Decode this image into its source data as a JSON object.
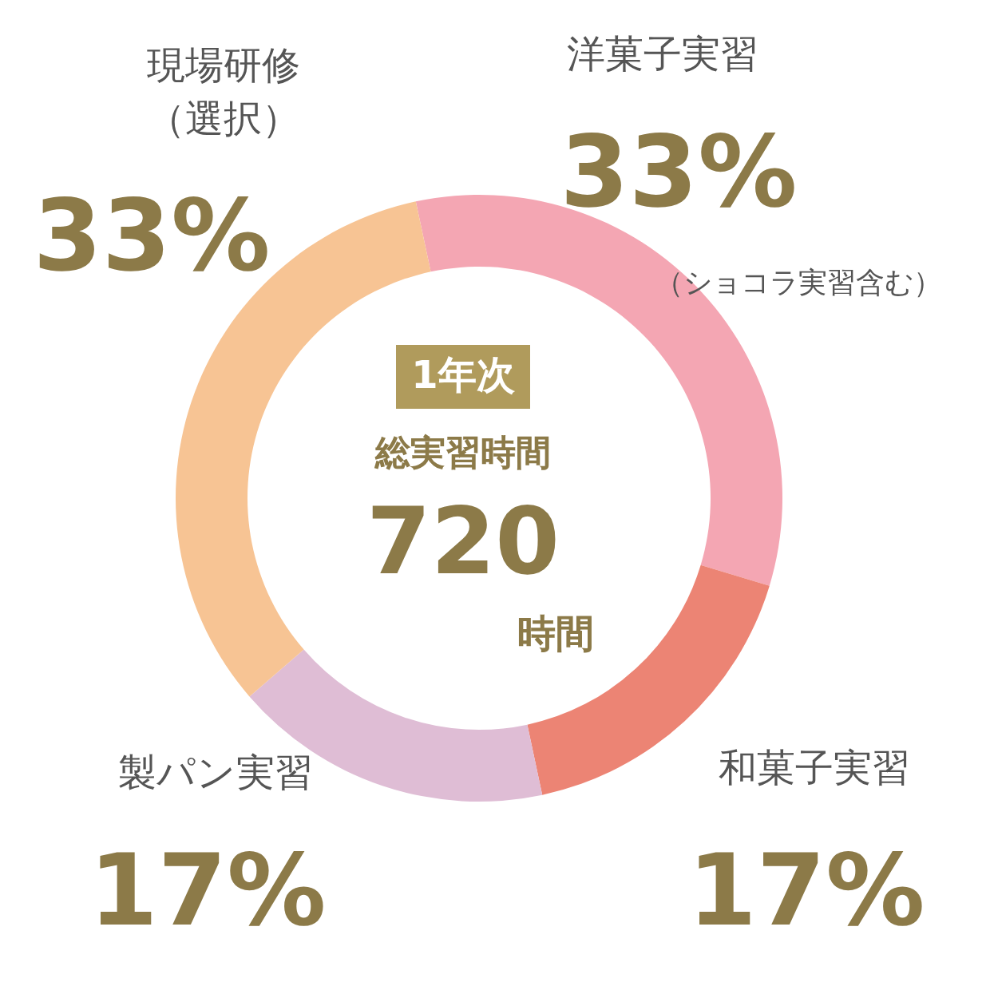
{
  "chart_data": {
    "type": "donut",
    "categories": [
      "洋菓子実習",
      "和菓子実習",
      "製パン実習",
      "現場研修（選択）"
    ],
    "values": [
      33,
      17,
      17,
      33
    ],
    "colors": [
      "#f4a6b3",
      "#ec8474",
      "#dfbdd5",
      "#f7c494"
    ],
    "value_labels": [
      "33%",
      "17%",
      "17%",
      "33%"
    ],
    "annotations": [
      "（ショコラ実習含む）",
      "1年次",
      "総実習時間",
      "720",
      "時間"
    ]
  }
}
